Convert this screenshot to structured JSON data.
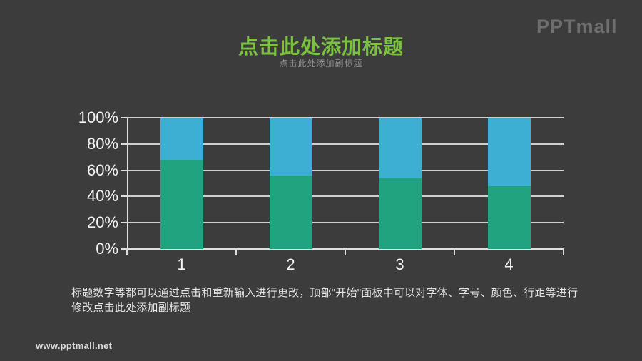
{
  "page": {
    "background": "#3c3c3c"
  },
  "logo": {
    "text": "PPTmall",
    "color": "#6e6e6e"
  },
  "header": {
    "title": "点击此处添加标题",
    "title_color": "#7cc242",
    "subtitle": "点击此处添加副标题"
  },
  "chart_data": {
    "type": "bar",
    "stacked": true,
    "percent_stacked": true,
    "categories": [
      "1",
      "2",
      "3",
      "4"
    ],
    "series": [
      {
        "name": "bottom-green",
        "color": "#22a37f",
        "values": [
          68,
          56,
          54,
          48
        ]
      },
      {
        "name": "top-blue",
        "color": "#3cafd2",
        "values": [
          32,
          44,
          46,
          52
        ]
      }
    ],
    "title": "",
    "xlabel": "",
    "ylabel": "",
    "ylim": [
      0,
      100
    ],
    "yticks": [
      "0%",
      "20%",
      "40%",
      "60%",
      "80%",
      "100%"
    ],
    "grid": true,
    "legend": "none",
    "gridline_color": "#cfcfcf",
    "axis_color": "#dedede",
    "tick_label_color": "#f2f2f2"
  },
  "body_text": "标题数字等都可以通过点击和重新输入进行更改，顶部\"开始\"面板中可以对字体、字号、颜色、行距等进行修改点击此处添加副标题",
  "footer": {
    "url": "www.pptmall.net"
  }
}
